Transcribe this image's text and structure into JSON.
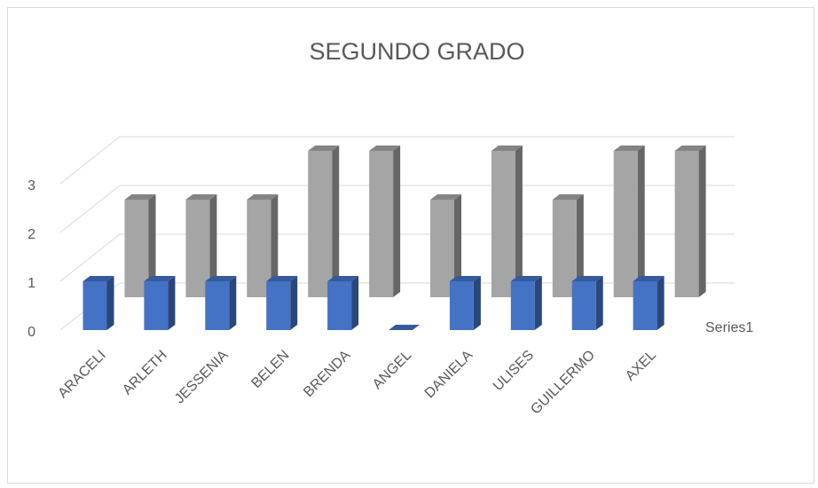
{
  "chart_data": {
    "type": "bar",
    "title": "SEGUNDO GRADO",
    "categories": [
      "ARACELI",
      "ARLETH",
      "JESSENIA",
      "BELEN",
      "BRENDA",
      "ANGEL",
      "DANIELA",
      "ULISES",
      "GUILLERMO",
      "AXEL"
    ],
    "series": [
      {
        "name": "Series1",
        "color": "#4472c4",
        "values": [
          1,
          1,
          1,
          1,
          1,
          0,
          1,
          1,
          1,
          1
        ]
      },
      {
        "color": "#a5a5a5",
        "values": [
          2,
          2,
          2,
          3,
          3,
          2,
          3,
          2,
          3,
          3
        ]
      }
    ],
    "ylim": [
      0,
      3
    ],
    "yticks": [
      0,
      1,
      2,
      3
    ],
    "grid": true
  }
}
